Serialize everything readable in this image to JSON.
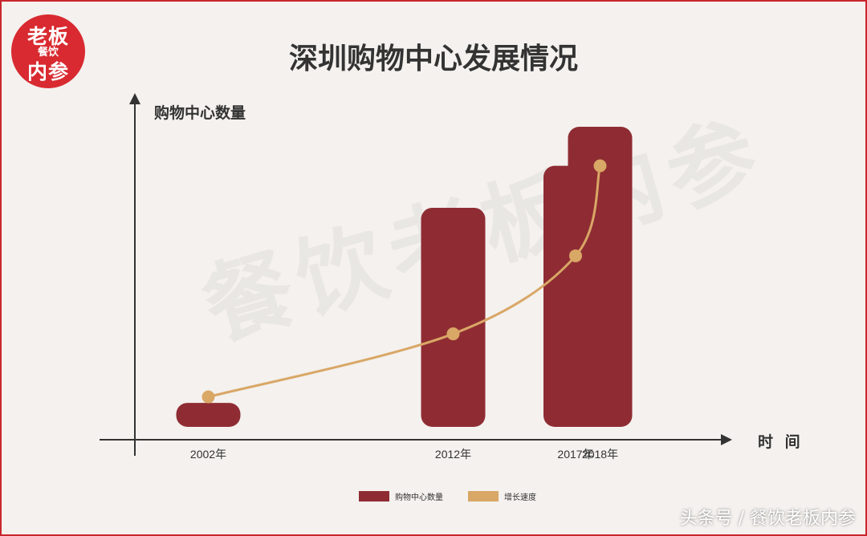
{
  "logo": {
    "line1": "老板",
    "line2": "餐饮",
    "line3": "内参"
  },
  "watermark": "餐饮老板内参",
  "credit": "头条号 / 餐饮老板内参",
  "colors": {
    "bar": "#8f2c33",
    "line": "#d9a766",
    "axis": "#333333",
    "frame": "#c8262c"
  },
  "chart_data": {
    "type": "bar",
    "title": "深圳购物中心发展情况",
    "ylabel": "购物中心数量",
    "xlabel": "时 间",
    "categories": [
      "2002年",
      "2012年",
      "2017年",
      "2018年"
    ],
    "x": [
      2002,
      2012,
      2017,
      2018
    ],
    "xlim": [
      1999,
      2023
    ],
    "ylim": [
      0,
      100
    ],
    "series": [
      {
        "name": "购物中心数量",
        "type": "bar",
        "values": [
          8,
          73,
          87,
          100
        ]
      },
      {
        "name": "增长速度",
        "type": "line",
        "values": [
          10,
          31,
          57,
          87
        ]
      }
    ],
    "legend": "bottom-center",
    "grid": false
  }
}
